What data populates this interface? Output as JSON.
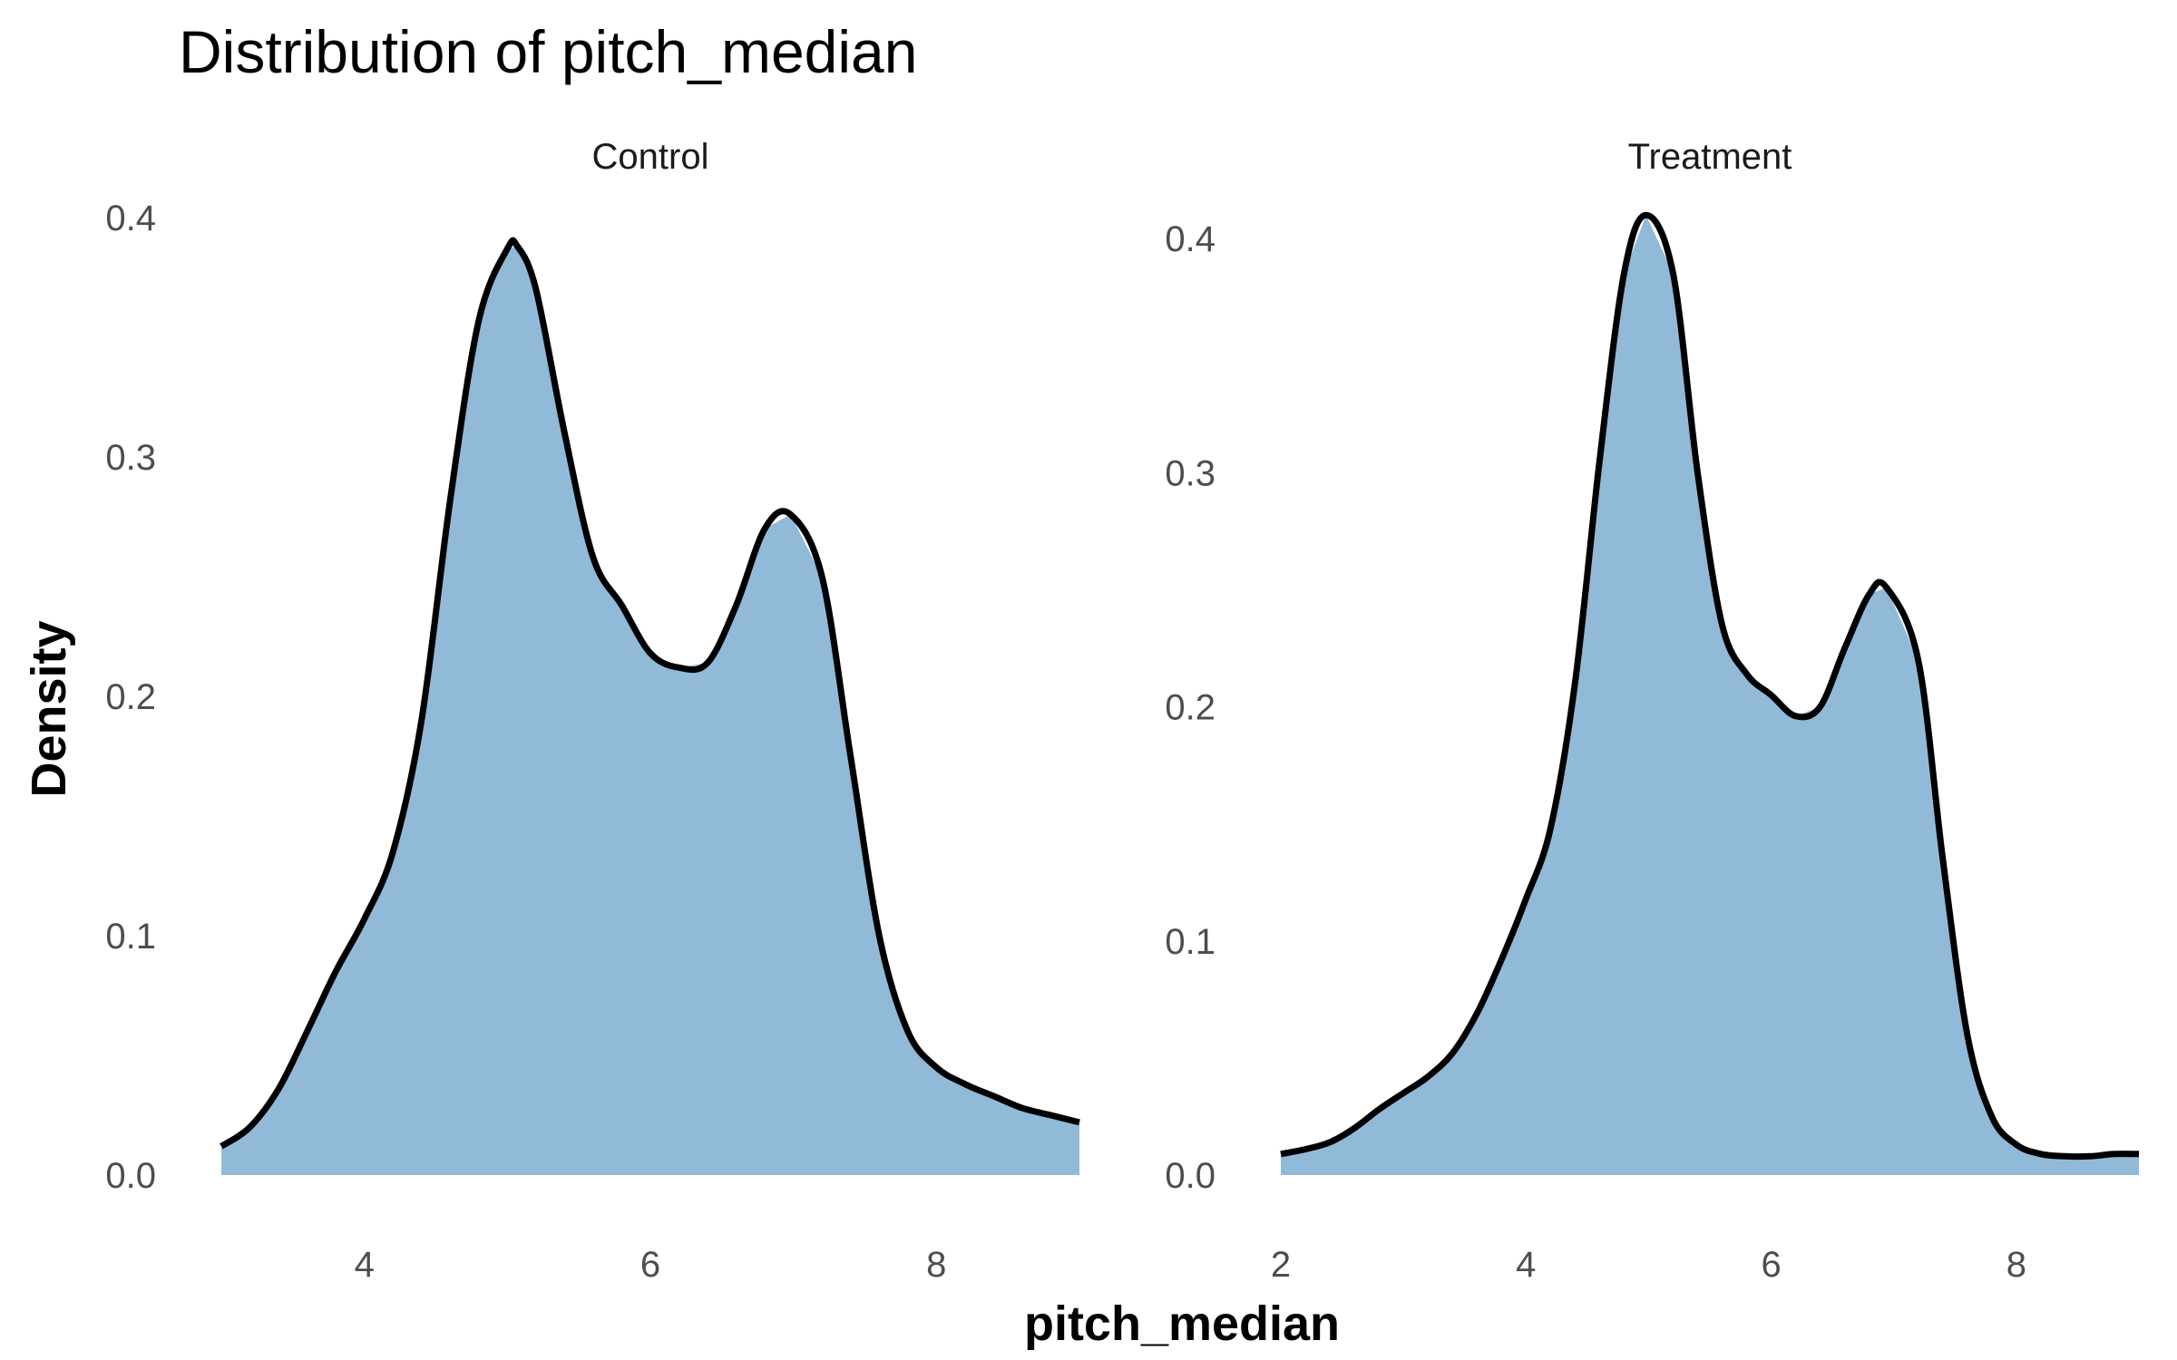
{
  "chart_data": {
    "type": "area",
    "title": "Distribution of pitch_median",
    "xlabel": "pitch_median",
    "ylabel": "Density",
    "fill_color": "#91bad9",
    "line_color": "#000000",
    "grid": false,
    "panels": [
      {
        "label": "Control",
        "xlim": [
          3.0,
          9.0
        ],
        "ylim": [
          0.0,
          0.4
        ],
        "x_ticks": [
          4,
          6,
          8
        ],
        "x_tick_labels": [
          "4",
          "6",
          "8"
        ],
        "y_ticks": [
          0.0,
          0.1,
          0.2,
          0.3,
          0.4
        ],
        "y_tick_labels": [
          "0.0",
          "0.1",
          "0.2",
          "0.3",
          "0.4"
        ],
        "x": [
          3.0,
          3.2,
          3.4,
          3.6,
          3.8,
          4.0,
          4.2,
          4.4,
          4.6,
          4.8,
          5.0,
          5.07,
          5.2,
          5.4,
          5.6,
          5.8,
          6.0,
          6.2,
          6.4,
          6.6,
          6.8,
          6.98,
          7.2,
          7.4,
          7.6,
          7.8,
          8.0,
          8.2,
          8.4,
          8.6,
          8.8,
          9.0
        ],
        "y": [
          0.012,
          0.02,
          0.036,
          0.06,
          0.085,
          0.107,
          0.135,
          0.19,
          0.282,
          0.357,
          0.387,
          0.388,
          0.37,
          0.31,
          0.258,
          0.238,
          0.218,
          0.212,
          0.214,
          0.238,
          0.27,
          0.276,
          0.25,
          0.175,
          0.1,
          0.06,
          0.045,
          0.038,
          0.033,
          0.028,
          0.025,
          0.022
        ]
      },
      {
        "label": "Treatment",
        "xlim": [
          2.0,
          9.0
        ],
        "ylim": [
          0.0,
          0.41
        ],
        "x_ticks": [
          2,
          4,
          6,
          8
        ],
        "x_tick_labels": [
          "2",
          "4",
          "6",
          "8"
        ],
        "y_ticks": [
          0.0,
          0.1,
          0.2,
          0.3,
          0.4
        ],
        "y_tick_labels": [
          "0.0",
          "0.1",
          "0.2",
          "0.3",
          "0.4"
        ],
        "x": [
          2.0,
          2.2,
          2.4,
          2.6,
          2.8,
          3.0,
          3.2,
          3.4,
          3.6,
          3.8,
          4.0,
          4.2,
          4.4,
          4.6,
          4.8,
          4.98,
          5.2,
          5.4,
          5.6,
          5.8,
          6.0,
          6.2,
          6.4,
          6.6,
          6.8,
          6.94,
          7.2,
          7.4,
          7.6,
          7.8,
          8.0,
          8.2,
          8.4,
          8.6,
          8.8,
          9.0
        ],
        "y": [
          0.009,
          0.011,
          0.014,
          0.02,
          0.028,
          0.035,
          0.042,
          0.052,
          0.069,
          0.092,
          0.118,
          0.148,
          0.21,
          0.305,
          0.385,
          0.41,
          0.385,
          0.3,
          0.235,
          0.214,
          0.205,
          0.196,
          0.2,
          0.225,
          0.248,
          0.251,
          0.22,
          0.135,
          0.06,
          0.025,
          0.013,
          0.009,
          0.008,
          0.008,
          0.009,
          0.009
        ]
      }
    ]
  }
}
